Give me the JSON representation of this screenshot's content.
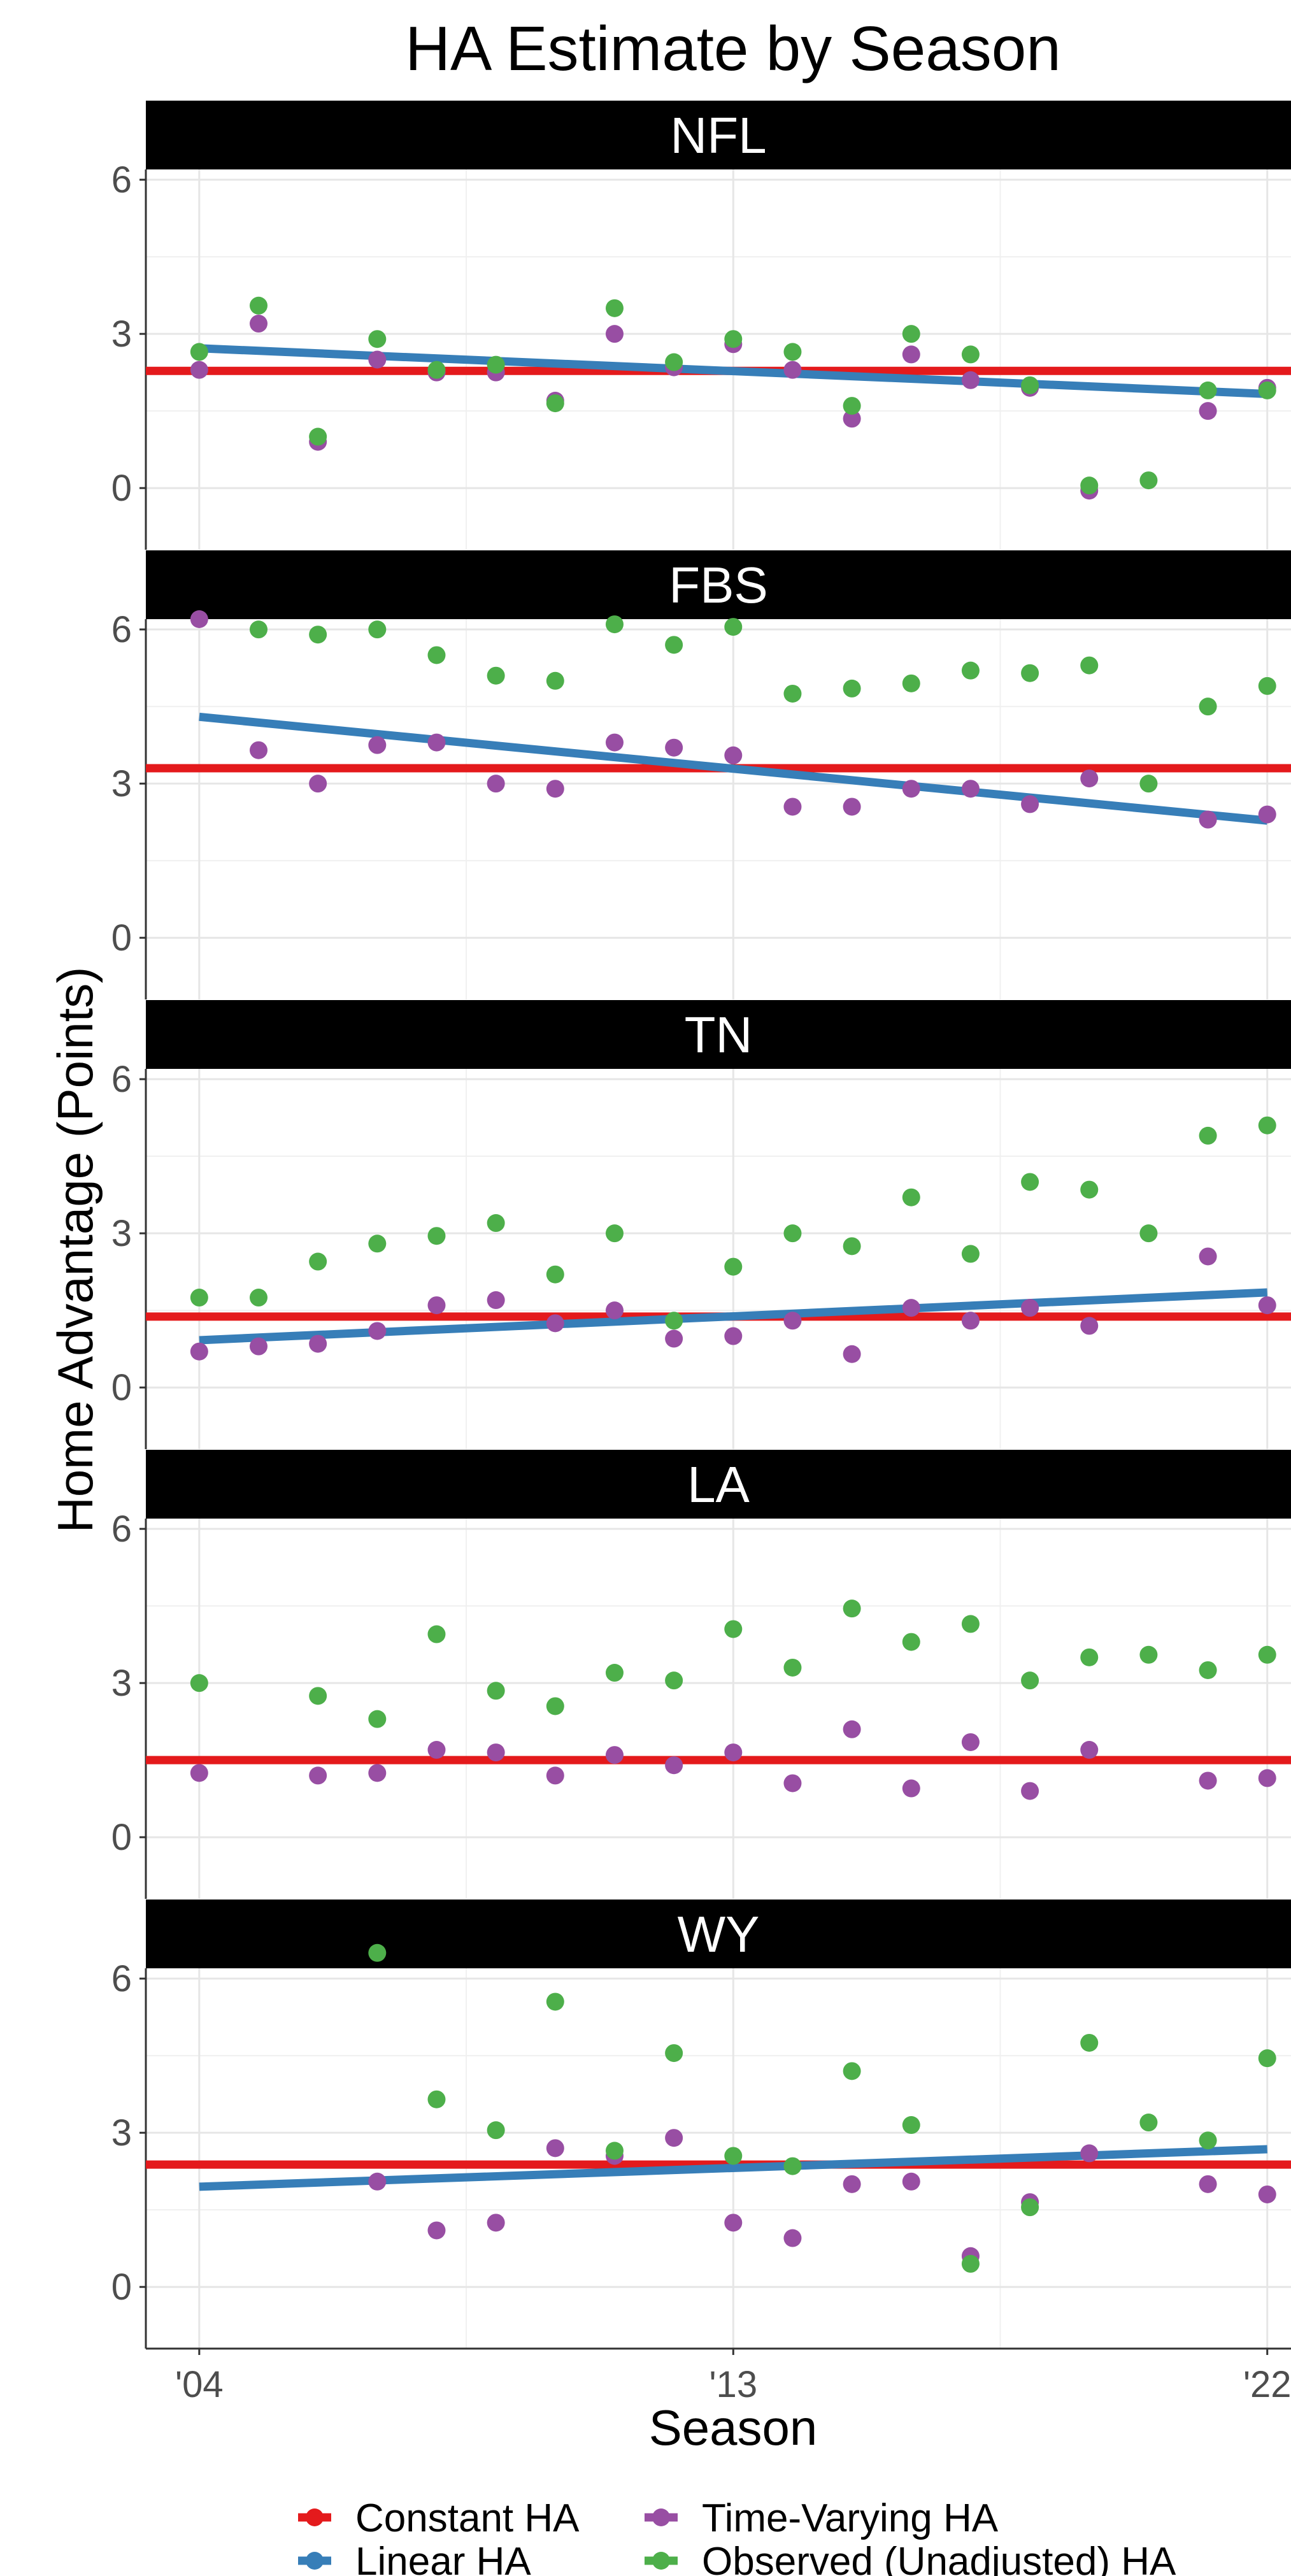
{
  "chart_data": {
    "type": "scatter",
    "title": "HA Estimate by Season",
    "xlabel": "Season",
    "ylabel": "Home Advantage (Points)",
    "x_ticks": [
      "'04",
      "'13",
      "'22"
    ],
    "x_tick_values": [
      2004,
      2013,
      2022
    ],
    "xlim": [
      2003.1,
      2022.4
    ],
    "ylim": [
      -1.2,
      6.2
    ],
    "y_ticks": [
      0,
      3,
      6
    ],
    "grid": true,
    "legend": {
      "position": "bottom",
      "entries": [
        {
          "name": "Constant HA",
          "color": "#e41a1c",
          "shape": "line"
        },
        {
          "name": "Time-Varying HA",
          "color": "#984ea3",
          "shape": "point"
        },
        {
          "name": "Linear HA",
          "color": "#377eb8",
          "shape": "line"
        },
        {
          "name": "Observed (Unadjusted) HA",
          "color": "#4daf4a",
          "shape": "point"
        }
      ]
    },
    "colors": {
      "constant": "#e41a1c",
      "linear": "#377eb8",
      "time_varying": "#984ea3",
      "observed": "#4daf4a"
    },
    "panels": [
      {
        "label": "NFL",
        "constant": 2.28,
        "linear": [
          [
            2004,
            2.72
          ],
          [
            2022,
            1.83
          ]
        ],
        "time_varying": [
          [
            2004,
            2.3
          ],
          [
            2005,
            3.2
          ],
          [
            2006,
            0.9
          ],
          [
            2007,
            2.5
          ],
          [
            2008,
            2.25
          ],
          [
            2009,
            2.25
          ],
          [
            2010,
            1.7
          ],
          [
            2011,
            3.0
          ],
          [
            2012,
            2.35
          ],
          [
            2013,
            2.8
          ],
          [
            2014,
            2.3
          ],
          [
            2015,
            1.35
          ],
          [
            2016,
            2.6
          ],
          [
            2017,
            2.1
          ],
          [
            2018,
            1.95
          ],
          [
            2019,
            -0.05
          ],
          [
            2021,
            1.5
          ],
          [
            2022,
            1.95
          ]
        ],
        "observed": [
          [
            2004,
            2.65
          ],
          [
            2005,
            3.55
          ],
          [
            2006,
            1.0
          ],
          [
            2007,
            2.9
          ],
          [
            2008,
            2.3
          ],
          [
            2009,
            2.4
          ],
          [
            2010,
            1.65
          ],
          [
            2011,
            3.5
          ],
          [
            2012,
            2.45
          ],
          [
            2013,
            2.9
          ],
          [
            2014,
            2.65
          ],
          [
            2015,
            1.6
          ],
          [
            2016,
            3.0
          ],
          [
            2017,
            2.6
          ],
          [
            2018,
            2.0
          ],
          [
            2019,
            0.05
          ],
          [
            2020,
            0.15
          ],
          [
            2021,
            1.9
          ],
          [
            2022,
            1.9
          ]
        ]
      },
      {
        "label": "FBS",
        "constant": 3.3,
        "linear": [
          [
            2004,
            4.3
          ],
          [
            2022,
            2.28
          ]
        ],
        "time_varying": [
          [
            2004,
            6.2
          ],
          [
            2005,
            3.65
          ],
          [
            2006,
            3.0
          ],
          [
            2007,
            3.75
          ],
          [
            2008,
            3.8
          ],
          [
            2009,
            3.0
          ],
          [
            2010,
            2.9
          ],
          [
            2011,
            3.8
          ],
          [
            2012,
            3.7
          ],
          [
            2013,
            3.55
          ],
          [
            2014,
            2.55
          ],
          [
            2015,
            2.55
          ],
          [
            2016,
            2.9
          ],
          [
            2017,
            2.9
          ],
          [
            2018,
            2.6
          ],
          [
            2019,
            3.1
          ],
          [
            2021,
            2.3
          ],
          [
            2022,
            2.4
          ]
        ],
        "observed": [
          [
            2005,
            6.0
          ],
          [
            2006,
            5.9
          ],
          [
            2007,
            6.0
          ],
          [
            2008,
            5.5
          ],
          [
            2009,
            5.1
          ],
          [
            2010,
            5.0
          ],
          [
            2011,
            6.1
          ],
          [
            2012,
            5.7
          ],
          [
            2013,
            6.05
          ],
          [
            2014,
            4.75
          ],
          [
            2015,
            4.85
          ],
          [
            2016,
            4.95
          ],
          [
            2017,
            5.2
          ],
          [
            2018,
            5.15
          ],
          [
            2019,
            5.3
          ],
          [
            2020,
            3.0
          ],
          [
            2021,
            4.5
          ],
          [
            2022,
            4.9
          ]
        ]
      },
      {
        "label": "TN",
        "constant": 1.38,
        "linear": [
          [
            2004,
            0.92
          ],
          [
            2022,
            1.85
          ]
        ],
        "time_varying": [
          [
            2004,
            0.7
          ],
          [
            2005,
            0.8
          ],
          [
            2006,
            0.85
          ],
          [
            2007,
            1.1
          ],
          [
            2008,
            1.6
          ],
          [
            2009,
            1.7
          ],
          [
            2010,
            1.25
          ],
          [
            2011,
            1.5
          ],
          [
            2012,
            0.95
          ],
          [
            2013,
            1.0
          ],
          [
            2014,
            1.3
          ],
          [
            2015,
            0.65
          ],
          [
            2016,
            1.55
          ],
          [
            2017,
            1.3
          ],
          [
            2018,
            1.55
          ],
          [
            2019,
            1.2
          ],
          [
            2021,
            2.55
          ],
          [
            2022,
            1.6
          ]
        ],
        "observed": [
          [
            2004,
            1.75
          ],
          [
            2005,
            1.75
          ],
          [
            2006,
            2.45
          ],
          [
            2007,
            2.8
          ],
          [
            2008,
            2.95
          ],
          [
            2009,
            3.2
          ],
          [
            2010,
            2.2
          ],
          [
            2011,
            3.0
          ],
          [
            2012,
            1.3
          ],
          [
            2013,
            2.35
          ],
          [
            2014,
            3.0
          ],
          [
            2015,
            2.75
          ],
          [
            2016,
            3.7
          ],
          [
            2017,
            2.6
          ],
          [
            2018,
            4.0
          ],
          [
            2019,
            3.85
          ],
          [
            2020,
            3.0
          ],
          [
            2021,
            4.9
          ],
          [
            2022,
            5.1
          ]
        ]
      },
      {
        "label": "LA",
        "constant": 1.5,
        "linear": [],
        "time_varying": [
          [
            2004,
            1.25
          ],
          [
            2006,
            1.2
          ],
          [
            2007,
            1.25
          ],
          [
            2008,
            1.7
          ],
          [
            2009,
            1.65
          ],
          [
            2010,
            1.2
          ],
          [
            2011,
            1.6
          ],
          [
            2012,
            1.4
          ],
          [
            2013,
            1.65
          ],
          [
            2014,
            1.05
          ],
          [
            2015,
            2.1
          ],
          [
            2016,
            0.95
          ],
          [
            2017,
            1.85
          ],
          [
            2018,
            0.9
          ],
          [
            2019,
            1.7
          ],
          [
            2021,
            1.1
          ],
          [
            2022,
            1.15
          ]
        ],
        "observed": [
          [
            2004,
            3.0
          ],
          [
            2006,
            2.75
          ],
          [
            2007,
            2.3
          ],
          [
            2008,
            3.95
          ],
          [
            2009,
            2.85
          ],
          [
            2010,
            2.55
          ],
          [
            2011,
            3.2
          ],
          [
            2012,
            3.05
          ],
          [
            2013,
            4.05
          ],
          [
            2014,
            3.3
          ],
          [
            2015,
            4.45
          ],
          [
            2016,
            3.8
          ],
          [
            2017,
            4.15
          ],
          [
            2018,
            3.05
          ],
          [
            2019,
            3.5
          ],
          [
            2020,
            3.55
          ],
          [
            2021,
            3.25
          ],
          [
            2022,
            3.55
          ]
        ]
      },
      {
        "label": "WY",
        "constant": 2.38,
        "linear": [
          [
            2004,
            1.95
          ],
          [
            2022,
            2.68
          ]
        ],
        "time_varying": [
          [
            2007,
            2.05
          ],
          [
            2008,
            1.1
          ],
          [
            2009,
            1.25
          ],
          [
            2010,
            2.7
          ],
          [
            2011,
            2.55
          ],
          [
            2012,
            2.9
          ],
          [
            2013,
            1.25
          ],
          [
            2014,
            0.95
          ],
          [
            2015,
            2.0
          ],
          [
            2016,
            2.05
          ],
          [
            2017,
            0.6
          ],
          [
            2018,
            1.65
          ],
          [
            2019,
            2.6
          ],
          [
            2021,
            2.0
          ],
          [
            2022,
            1.8
          ]
        ],
        "observed": [
          [
            2007,
            6.5
          ],
          [
            2008,
            3.65
          ],
          [
            2009,
            3.05
          ],
          [
            2010,
            5.55
          ],
          [
            2011,
            2.65
          ],
          [
            2012,
            4.55
          ],
          [
            2013,
            2.55
          ],
          [
            2014,
            2.35
          ],
          [
            2015,
            4.2
          ],
          [
            2016,
            3.15
          ],
          [
            2017,
            0.45
          ],
          [
            2018,
            1.55
          ],
          [
            2019,
            4.75
          ],
          [
            2020,
            3.2
          ],
          [
            2021,
            2.85
          ],
          [
            2022,
            4.45
          ]
        ]
      }
    ]
  }
}
